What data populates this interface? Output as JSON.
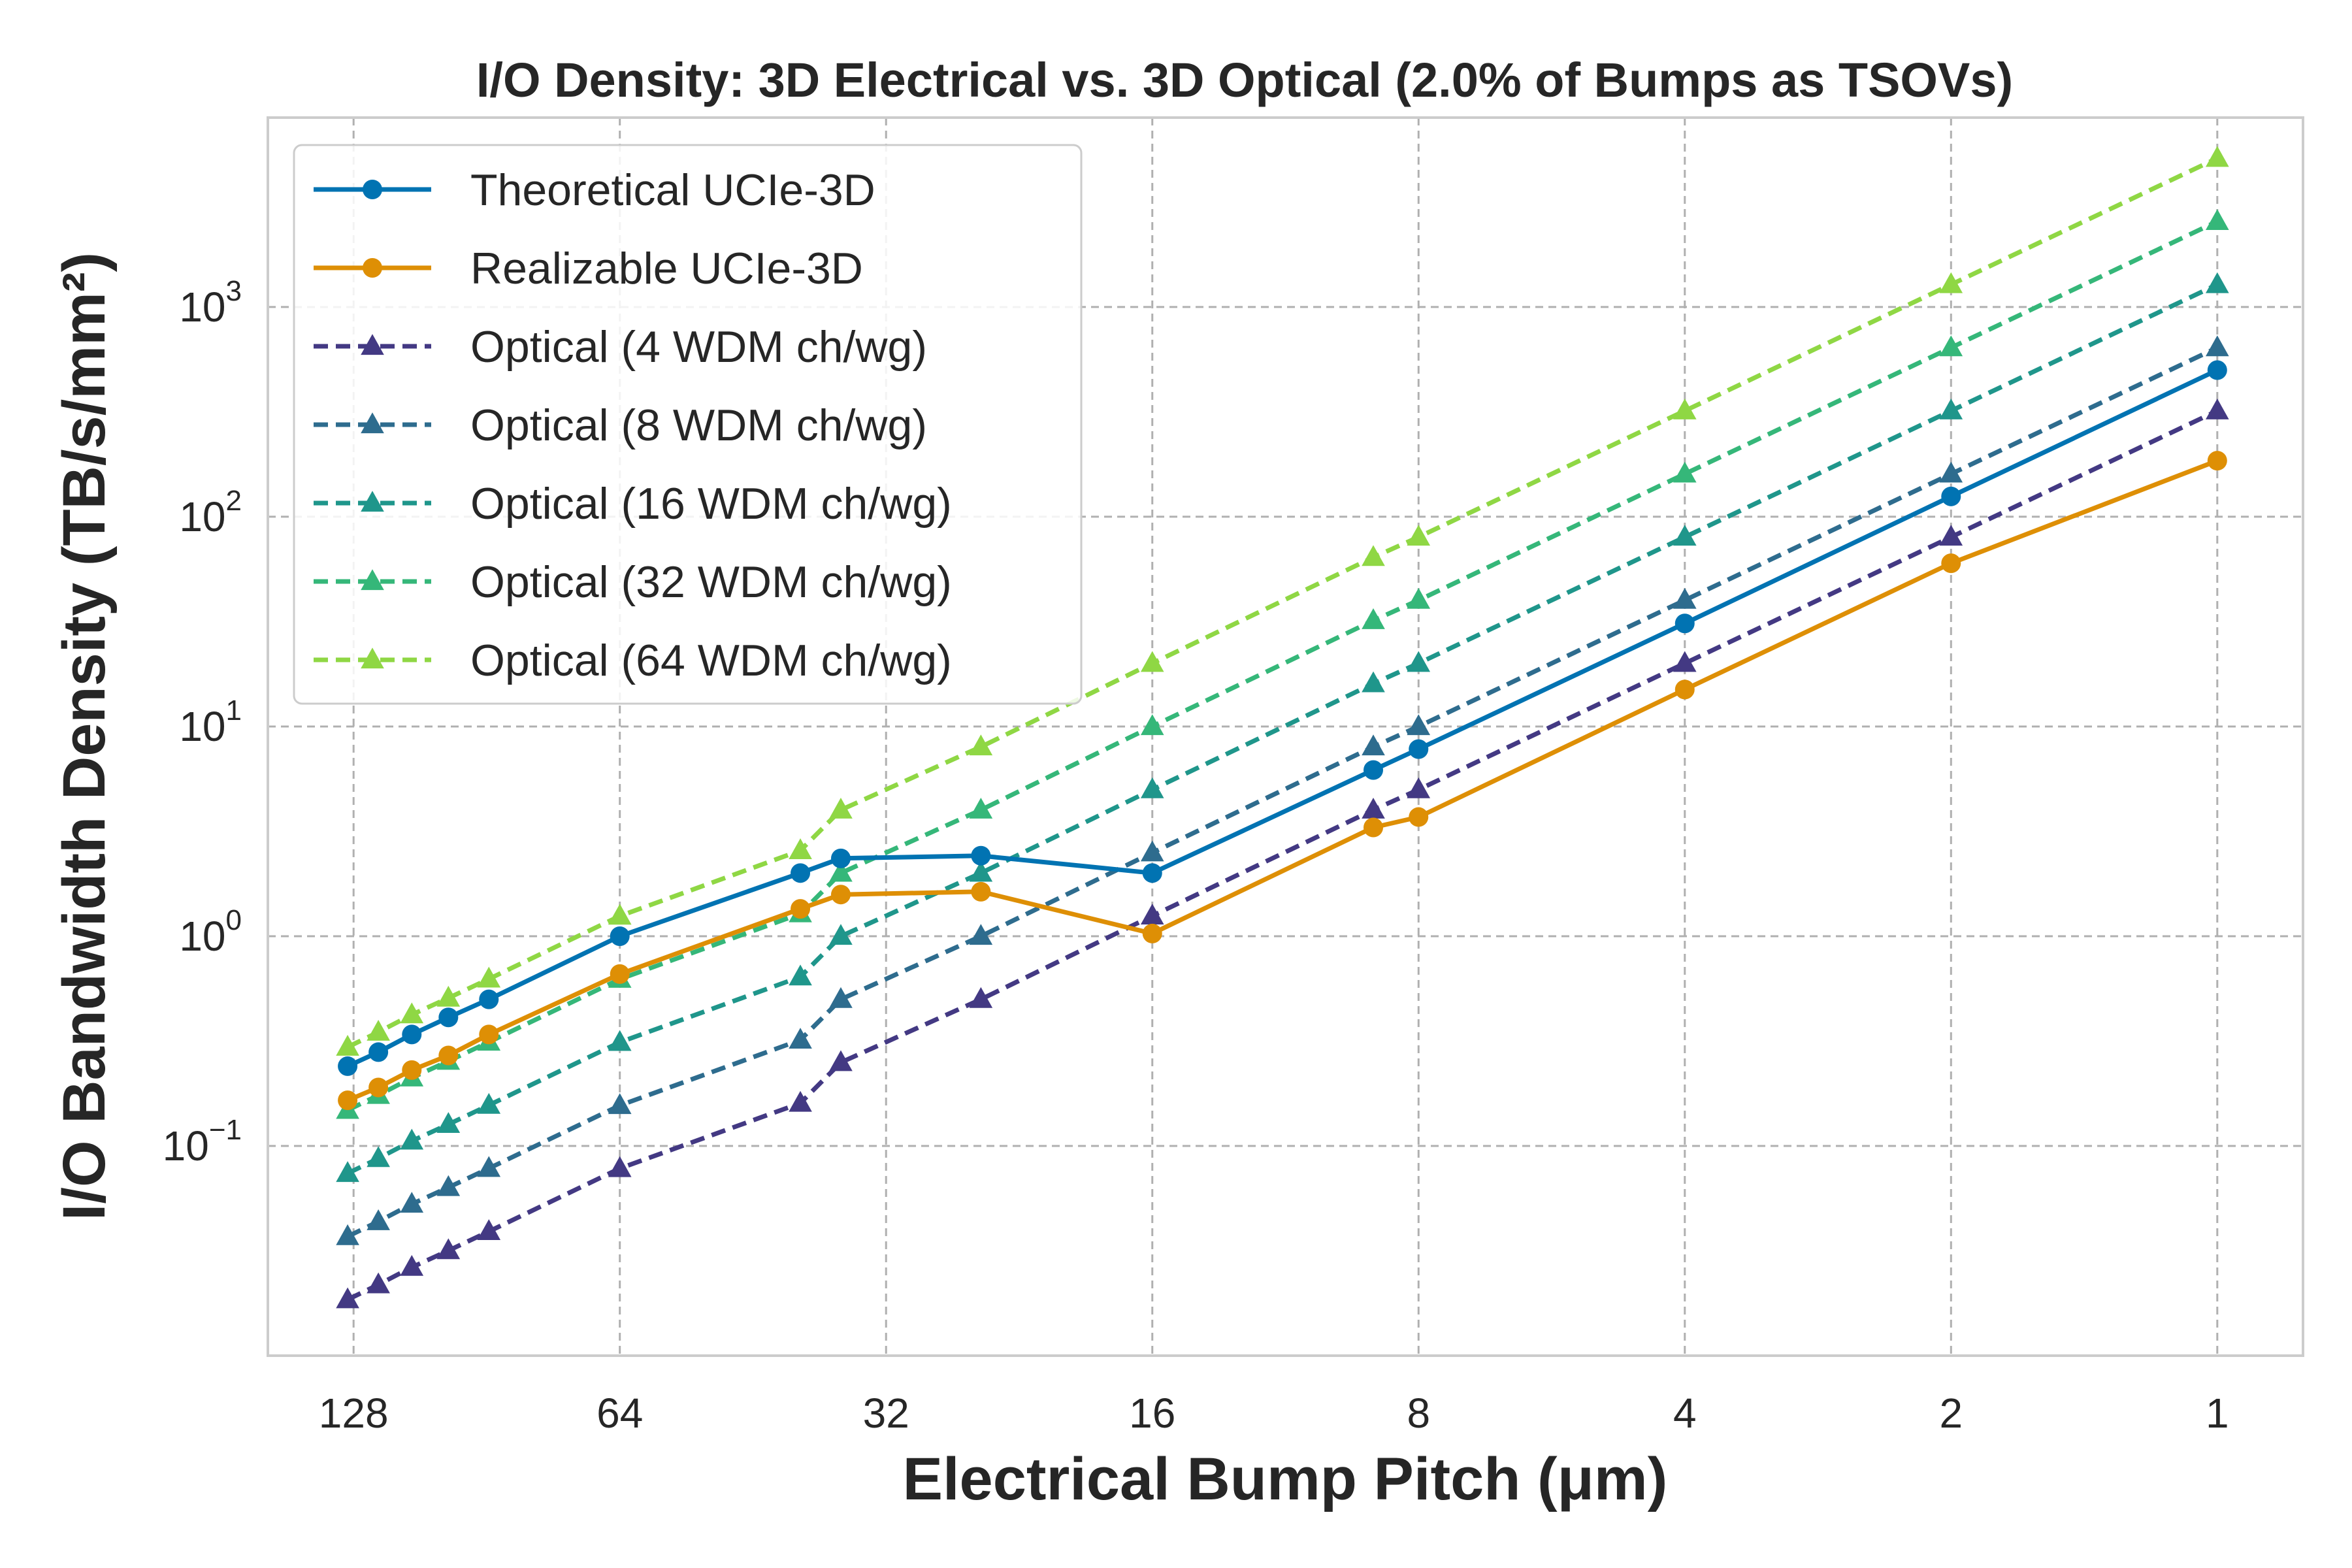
{
  "chart_data": {
    "type": "line",
    "title": "I/O Density: 3D Electrical vs. 3D Optical (2.0% of Bumps as TSOVs)",
    "xlabel": "Electrical Bump Pitch (μm)",
    "ylabel": "I/O Bandwidth Density (TB/s/mm²)",
    "x_scale": "log2",
    "x_reversed": true,
    "x_ticks": [
      128,
      64,
      32,
      16,
      8,
      4,
      2,
      1
    ],
    "x_tick_labels": [
      "128",
      "64",
      "32",
      "16",
      "8",
      "4",
      "2",
      "1"
    ],
    "y_scale": "log10",
    "y_ticks": [
      0.1,
      1,
      10,
      100,
      1000
    ],
    "y_tick_labels": [
      {
        "base": "10",
        "exp": "−1"
      },
      {
        "base": "10",
        "exp": "0"
      },
      {
        "base": "10",
        "exp": "1"
      },
      {
        "base": "10",
        "exp": "2"
      },
      {
        "base": "10",
        "exp": "3"
      }
    ],
    "xlim": [
      160,
      0.8
    ],
    "ylim": [
      0.01,
      8000
    ],
    "grid": true,
    "legend_position": "top-left",
    "x": [
      130,
      120,
      110,
      100,
      90,
      64,
      40,
      36,
      25,
      16,
      9,
      8,
      4,
      2,
      1
    ],
    "series": [
      {
        "name": "Theoretical UCIe-3D",
        "color": "#0173b2",
        "line_style": "solid",
        "marker": "circle",
        "values": [
          0.24,
          0.28,
          0.34,
          0.41,
          0.5,
          1.0,
          2.0,
          2.35,
          2.42,
          2.0,
          6.2,
          7.8,
          31,
          125,
          500
        ]
      },
      {
        "name": "Realizable UCIe-3D",
        "color": "#de8f05",
        "line_style": "solid",
        "marker": "circle",
        "values": [
          0.165,
          0.19,
          0.23,
          0.27,
          0.34,
          0.66,
          1.35,
          1.58,
          1.63,
          1.03,
          3.3,
          3.7,
          15,
          60,
          185
        ]
      },
      {
        "name": "Optical (4 WDM ch/wg)",
        "color": "#433983",
        "line_style": "dashed",
        "marker": "triangle",
        "values": [
          0.0185,
          0.0218,
          0.0264,
          0.0317,
          0.0391,
          0.0781,
          0.16,
          0.25,
          0.5,
          1.25,
          4.0,
          5.0,
          20,
          80,
          320
        ]
      },
      {
        "name": "Optical (8 WDM ch/wg)",
        "color": "#2e6c8e",
        "line_style": "dashed",
        "marker": "triangle",
        "values": [
          0.037,
          0.0436,
          0.0528,
          0.0634,
          0.0782,
          0.156,
          0.32,
          0.5,
          1.0,
          2.5,
          8.0,
          10,
          40,
          160,
          640
        ]
      },
      {
        "name": "Optical (16 WDM ch/wg)",
        "color": "#1f968b",
        "line_style": "dashed",
        "marker": "triangle",
        "values": [
          0.074,
          0.0872,
          0.1056,
          0.1268,
          0.1564,
          0.312,
          0.64,
          1.0,
          2.0,
          5.0,
          16,
          20,
          80,
          320,
          1280
        ]
      },
      {
        "name": "Optical (32 WDM ch/wg)",
        "color": "#35b779",
        "line_style": "dashed",
        "marker": "triangle",
        "values": [
          0.148,
          0.1744,
          0.2112,
          0.2536,
          0.3128,
          0.624,
          1.28,
          2.0,
          4.0,
          10,
          32,
          40,
          160,
          640,
          2560
        ]
      },
      {
        "name": "Optical (64 WDM ch/wg)",
        "color": "#8fd744",
        "line_style": "dashed",
        "marker": "triangle",
        "values": [
          0.296,
          0.3488,
          0.4224,
          0.5072,
          0.6256,
          1.248,
          2.56,
          4.0,
          8.0,
          20,
          64,
          80,
          320,
          1280,
          5120
        ]
      }
    ]
  }
}
